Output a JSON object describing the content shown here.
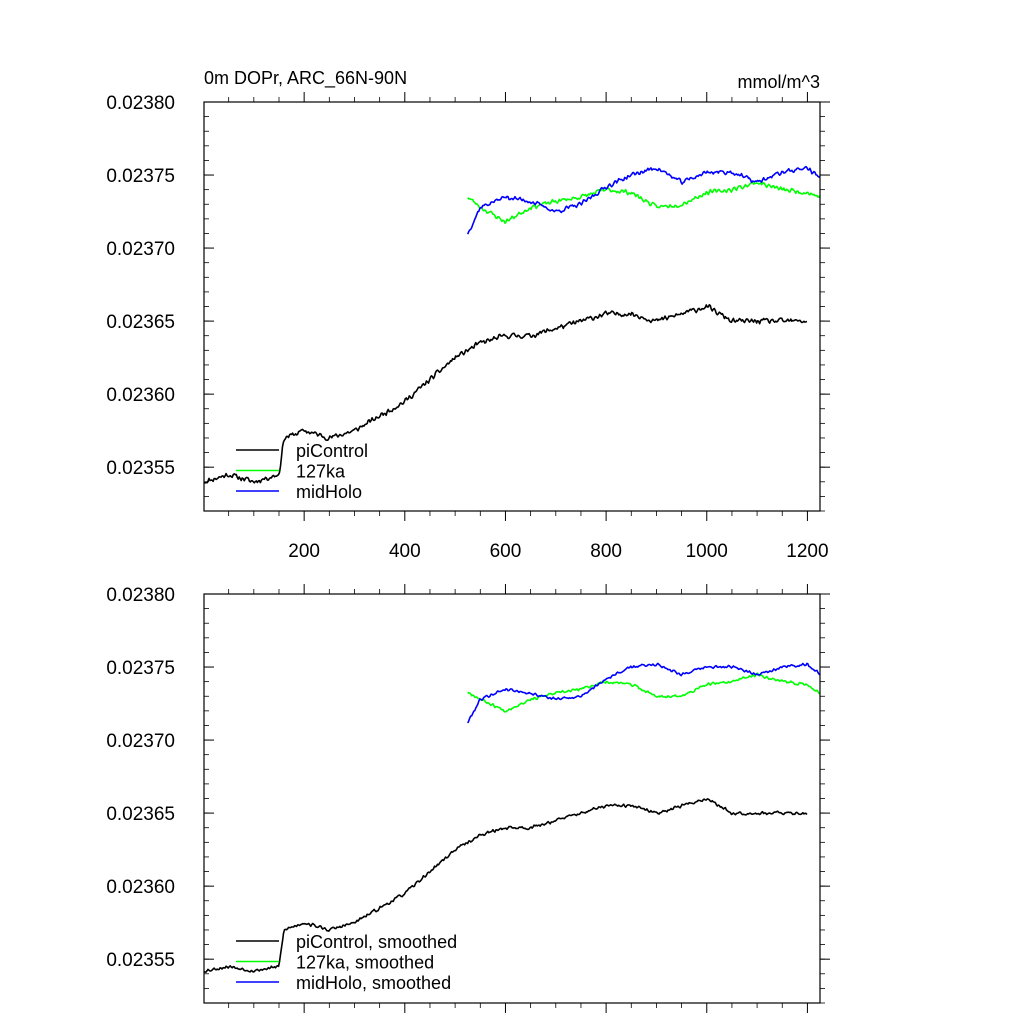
{
  "chart_data": [
    {
      "type": "line",
      "title": "0m DOPr, ARC_66N-90N",
      "units": "mmol/m^3",
      "xlabel": "",
      "ylabel": "",
      "xlim": [
        1,
        1225
      ],
      "ylim": [
        0.02352,
        0.0238
      ],
      "xticks": [
        200,
        400,
        600,
        800,
        1000,
        1200
      ],
      "xtick_labels": [
        "200",
        "400",
        "600",
        "800",
        "1000",
        "1200"
      ],
      "yticks": [
        0.02355,
        0.0236,
        0.02365,
        0.0237,
        0.02375,
        0.0238
      ],
      "ytick_labels": [
        "0.02355",
        "0.02360",
        "0.02365",
        "0.02370",
        "0.02375",
        "0.02380"
      ],
      "legend_position": "bottom-left",
      "series": [
        {
          "name": "piControl",
          "color": "#000000",
          "x": [
            1,
            50,
            100,
            150,
            160,
            200,
            250,
            300,
            350,
            400,
            450,
            500,
            550,
            600,
            650,
            700,
            750,
            800,
            850,
            900,
            950,
            1000,
            1050,
            1100,
            1150,
            1200
          ],
          "values": [
            0.02354,
            0.023545,
            0.02354,
            0.023545,
            0.02357,
            0.023575,
            0.02357,
            0.023575,
            0.023585,
            0.023595,
            0.02361,
            0.023625,
            0.023635,
            0.02364,
            0.02364,
            0.023645,
            0.02365,
            0.023655,
            0.023655,
            0.02365,
            0.023655,
            0.02366,
            0.02365,
            0.02365,
            0.02365,
            0.02365
          ],
          "noise": 2.2e-06,
          "seed": 11
        },
        {
          "name": "127ka",
          "color": "#00ff00",
          "x": [
            525,
            550,
            600,
            650,
            700,
            750,
            800,
            850,
            900,
            950,
            1000,
            1050,
            1100,
            1150,
            1200,
            1225
          ],
          "values": [
            0.023735,
            0.023728,
            0.023718,
            0.023728,
            0.023732,
            0.023735,
            0.02374,
            0.023738,
            0.023728,
            0.02373,
            0.023738,
            0.02374,
            0.023745,
            0.02374,
            0.023738,
            0.023735
          ],
          "noise": 1.9e-06,
          "seed": 23
        },
        {
          "name": "midHolo",
          "color": "#0000ff",
          "x": [
            525,
            550,
            600,
            650,
            700,
            750,
            800,
            850,
            900,
            950,
            1000,
            1050,
            1100,
            1150,
            1200,
            1225
          ],
          "values": [
            0.02371,
            0.023728,
            0.023735,
            0.023732,
            0.023725,
            0.02373,
            0.023742,
            0.02375,
            0.023755,
            0.023745,
            0.023752,
            0.023752,
            0.023745,
            0.023752,
            0.023755,
            0.023748
          ],
          "noise": 1.9e-06,
          "seed": 37
        }
      ]
    },
    {
      "type": "line",
      "title": "",
      "xlabel": "",
      "ylabel": "",
      "xlim": [
        1,
        1225
      ],
      "ylim": [
        0.02352,
        0.0238
      ],
      "xticks": [
        200,
        400,
        600,
        800,
        1000,
        1200
      ],
      "xtick_labels": [],
      "yticks": [
        0.02355,
        0.0236,
        0.02365,
        0.0237,
        0.02375,
        0.0238
      ],
      "ytick_labels": [
        "0.02355",
        "0.02360",
        "0.02365",
        "0.02370",
        "0.02375",
        "0.02380"
      ],
      "legend_position": "bottom-left",
      "series": [
        {
          "name": "piControl, smoothed",
          "color": "#000000",
          "x": [
            1,
            50,
            100,
            150,
            160,
            200,
            250,
            300,
            350,
            400,
            450,
            500,
            550,
            600,
            650,
            700,
            750,
            800,
            850,
            900,
            950,
            1000,
            1050,
            1100,
            1150,
            1200
          ],
          "values": [
            0.023542,
            0.023545,
            0.023542,
            0.023545,
            0.02357,
            0.023575,
            0.02357,
            0.023575,
            0.023585,
            0.023595,
            0.02361,
            0.023625,
            0.023635,
            0.02364,
            0.02364,
            0.023645,
            0.02365,
            0.023655,
            0.023655,
            0.02365,
            0.023655,
            0.02366,
            0.02365,
            0.02365,
            0.02365,
            0.02365
          ],
          "noise": 1.4e-06,
          "seed": 53
        },
        {
          "name": "127ka, smoothed",
          "color": "#00ff00",
          "x": [
            525,
            550,
            600,
            650,
            700,
            750,
            800,
            850,
            900,
            950,
            1000,
            1050,
            1100,
            1150,
            1200,
            1225
          ],
          "values": [
            0.023733,
            0.023728,
            0.02372,
            0.023728,
            0.023732,
            0.023735,
            0.02374,
            0.023738,
            0.02373,
            0.02373,
            0.023738,
            0.02374,
            0.023745,
            0.02374,
            0.023738,
            0.023732
          ],
          "noise": 1.2e-06,
          "seed": 67
        },
        {
          "name": "midHolo, smoothed",
          "color": "#0000ff",
          "x": [
            525,
            550,
            600,
            650,
            700,
            750,
            800,
            850,
            900,
            950,
            1000,
            1050,
            1100,
            1150,
            1200,
            1225
          ],
          "values": [
            0.023712,
            0.023728,
            0.023735,
            0.023732,
            0.023728,
            0.02373,
            0.023742,
            0.02375,
            0.023752,
            0.023745,
            0.02375,
            0.02375,
            0.023745,
            0.02375,
            0.023752,
            0.023745
          ],
          "noise": 1.2e-06,
          "seed": 79
        }
      ]
    }
  ]
}
